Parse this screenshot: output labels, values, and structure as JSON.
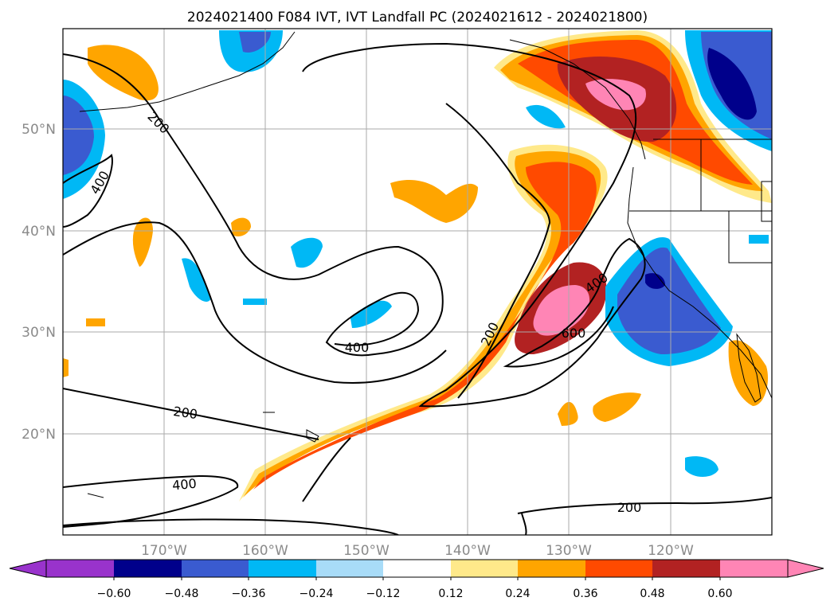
{
  "title": "2024021400 F084 IVT, IVT Landfall PC (2024021612 - 2024021800)",
  "map": {
    "lat_labels": [
      "50°N",
      "40°N",
      "30°N",
      "20°N"
    ],
    "lon_labels": [
      "170°W",
      "160°W",
      "150°W",
      "140°W",
      "130°W",
      "120°W"
    ],
    "contour_labels": [
      "200",
      "400",
      "400",
      "200",
      "400",
      "200",
      "400",
      "600",
      "200",
      "200"
    ]
  },
  "colorbar": {
    "ticks": [
      "−0.60",
      "−0.48",
      "−0.36",
      "−0.24",
      "−0.12",
      "0.12",
      "0.24",
      "0.36",
      "0.48",
      "0.60"
    ],
    "colors": [
      "#9933cc",
      "#00008b",
      "#3a5bd0",
      "#00b8f5",
      "#a8dcf8",
      "#ffffff",
      "#ffe98a",
      "#ffa500",
      "#ff4a00",
      "#b22222",
      "#ff85b5"
    ]
  }
}
